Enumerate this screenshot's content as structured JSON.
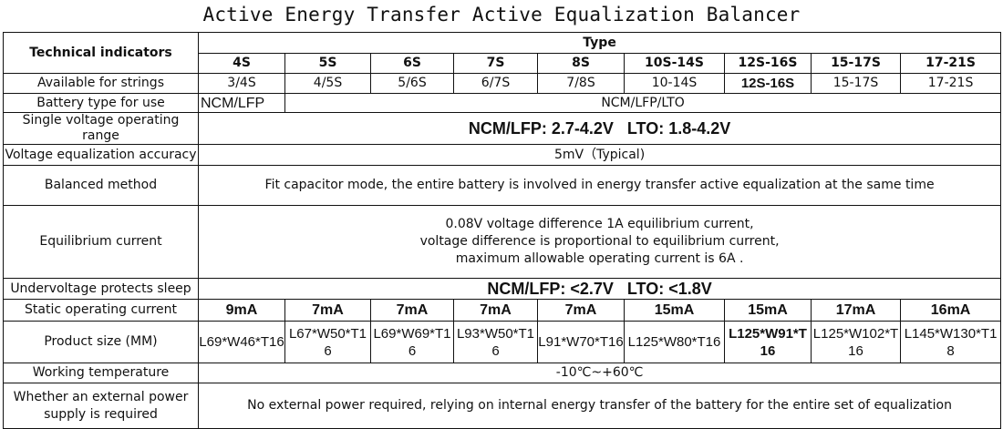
{
  "title": "Active Energy Transfer Active Equalization Balancer",
  "header": {
    "indicators_label": "Technical indicators",
    "type_label": "Type",
    "types": [
      "4S",
      "5S",
      "6S",
      "7S",
      "8S",
      "10S-14S",
      "12S-16S",
      "15-17S",
      "17-21S"
    ]
  },
  "rows": {
    "strings": {
      "label": "Available for strings",
      "values": [
        "3/4S",
        "4/5S",
        "5/6S",
        "6/7S",
        "7/8S",
        "10-14S",
        "12S-16S",
        "15-17S",
        "17-21S"
      ]
    },
    "battery": {
      "label": "Battery type for use",
      "first": "NCM/LFP",
      "rest": "NCM/LFP/LTO"
    },
    "voltage_range": {
      "label": "Single voltage operating range",
      "value": "NCM/LFP: 2.7-4.2V   LTO: 1.8-4.2V"
    },
    "accuracy": {
      "label": "Voltage equalization accuracy",
      "value": "5mV（Typical)"
    },
    "method": {
      "label": "Balanced method",
      "value": "Fit capacitor mode, the entire battery is involved in energy transfer active equalization at the same time"
    },
    "equilibrium": {
      "label": "Equilibrium current",
      "lines": [
        "0.08V voltage difference 1A equilibrium current,",
        "voltage difference is proportional to equilibrium current,",
        "maximum allowable operating current is 6A ."
      ]
    },
    "undervoltage": {
      "label": "Undervoltage protects sleep",
      "value": "NCM/LFP: <2.7V   LTO: <1.8V"
    },
    "static_current": {
      "label": "Static operating current",
      "values": [
        "9mA",
        "7mA",
        "7mA",
        "7mA",
        "7mA",
        "15mA",
        "15mA",
        "17mA",
        "16mA"
      ]
    },
    "size": {
      "label": "Product size (MM)",
      "values": [
        "L69*W46*T16",
        "L67*W50*T16",
        "L69*W69*T16",
        "L93*W50*T16",
        "L91*W70*T16",
        "L125*W80*T16",
        "L125*W91*T16",
        "L125*W102*T16",
        "L145*W130*T18"
      ]
    },
    "temperature": {
      "label": "Working temperature",
      "value": "-10℃~+60℃"
    },
    "external": {
      "label": "Whether an external power supply is required",
      "value": "No external power required, relying on internal energy transfer of the battery for the entire set of equalization"
    }
  }
}
